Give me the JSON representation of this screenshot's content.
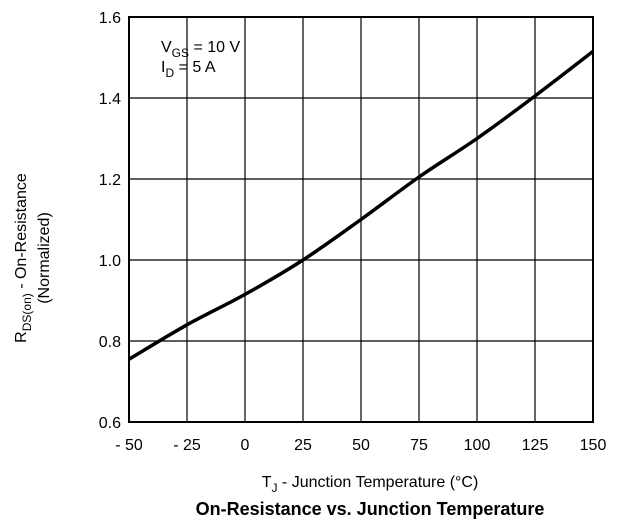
{
  "chart_data": {
    "type": "line",
    "title": "On-Resistance vs. Junction Temperature",
    "xlabel": {
      "prefix": "T",
      "sub": "J",
      "suffix": " - Junction Temperature (°C)"
    },
    "ylabel": {
      "line1": {
        "prefix": "R",
        "sub": "DS(on)",
        "suffix": " - On-Resistance"
      },
      "line2": "(Normalized)"
    },
    "xlim": [
      -50,
      150
    ],
    "ylim": [
      0.6,
      1.6
    ],
    "x_ticks": [
      -50,
      -25,
      0,
      25,
      50,
      75,
      100,
      125,
      150
    ],
    "x_tick_labels": [
      "- 50",
      "- 25",
      "0",
      "25",
      "50",
      "75",
      "100",
      "125",
      "150"
    ],
    "y_ticks": [
      0.6,
      0.8,
      1.0,
      1.2,
      1.4,
      1.6
    ],
    "y_tick_labels": [
      "0.6",
      "0.8",
      "1.0",
      "1.2",
      "1.4",
      "1.6"
    ],
    "grid": true,
    "annotations": [
      {
        "prefix": "V",
        "sub": "GS",
        "suffix": " = 10 V"
      },
      {
        "prefix": "I",
        "sub": "D",
        "suffix": " = 5 A"
      }
    ],
    "series": [
      {
        "x": [
          -50,
          -25,
          0,
          25,
          50,
          75,
          100,
          125,
          150
        ],
        "y": [
          0.755,
          0.84,
          0.915,
          1.0,
          1.1,
          1.205,
          1.3,
          1.405,
          1.515
        ]
      }
    ]
  }
}
